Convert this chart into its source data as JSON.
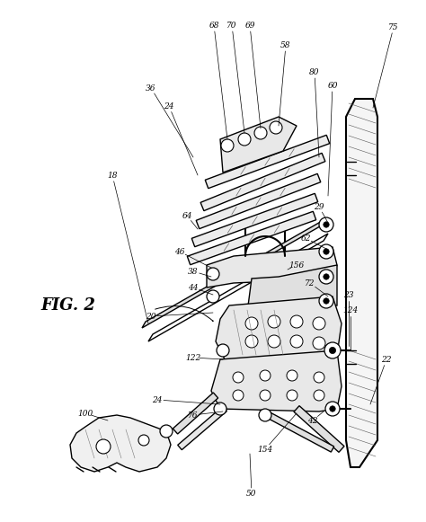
{
  "bg_color": "#ffffff",
  "line_color": "#000000",
  "fig_label": "FIG. 2",
  "lw_main": 1.0,
  "lw_thin": 0.6,
  "lw_thick": 1.5,
  "pivot_r": 0.008,
  "hole_r": 0.006
}
